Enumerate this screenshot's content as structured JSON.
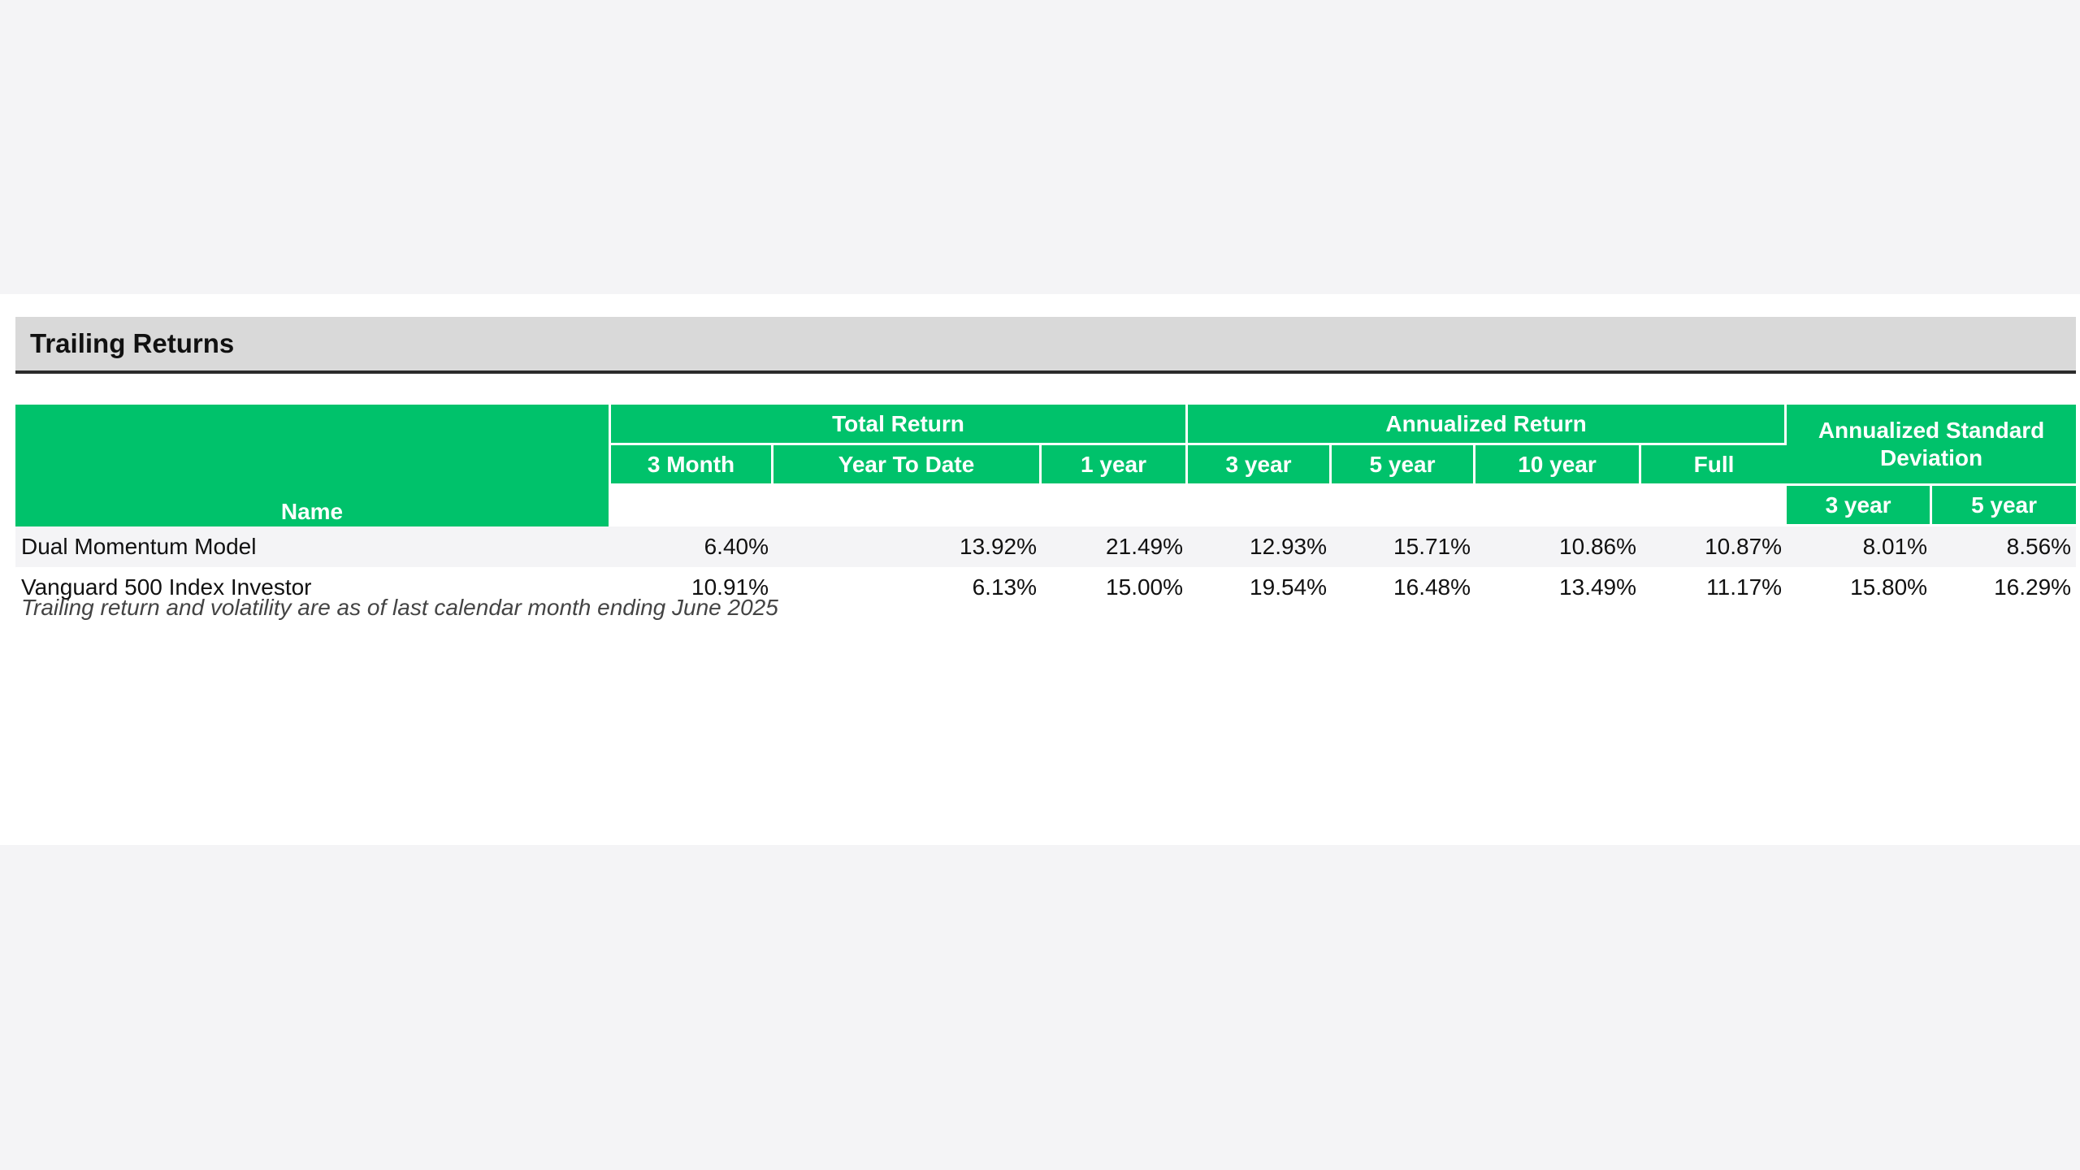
{
  "section": {
    "title": "Trailing Returns"
  },
  "table": {
    "group_headers": {
      "total_return": "Total Return",
      "annualized_return": "Annualized Return",
      "annualized_std": "Annualized Standard Deviation"
    },
    "name_header": "Name",
    "columns": {
      "three_month": "3 Month",
      "ytd": "Year To Date",
      "one_year": "1 year",
      "ann_3y": "3 year",
      "ann_5y": "5 year",
      "ann_10y": "10 year",
      "ann_full": "Full",
      "std_3y": "3 year",
      "std_5y": "5 year"
    },
    "rows": [
      {
        "name": "Dual Momentum Model",
        "values": [
          "6.40%",
          "13.92%",
          "21.49%",
          "12.93%",
          "15.71%",
          "10.86%",
          "10.87%",
          "8.01%",
          "8.56%"
        ]
      },
      {
        "name": "Vanguard 500 Index Investor",
        "values": [
          "10.91%",
          "6.13%",
          "15.00%",
          "19.54%",
          "16.48%",
          "13.49%",
          "11.17%",
          "15.80%",
          "16.29%"
        ]
      }
    ]
  },
  "footnote": "Trailing return and volatility are as of last calendar month ending June 2025",
  "colors": {
    "header_green": "#00c26b",
    "section_bar": "#d9d9d9",
    "row_stripe": "#f4f4f6"
  }
}
